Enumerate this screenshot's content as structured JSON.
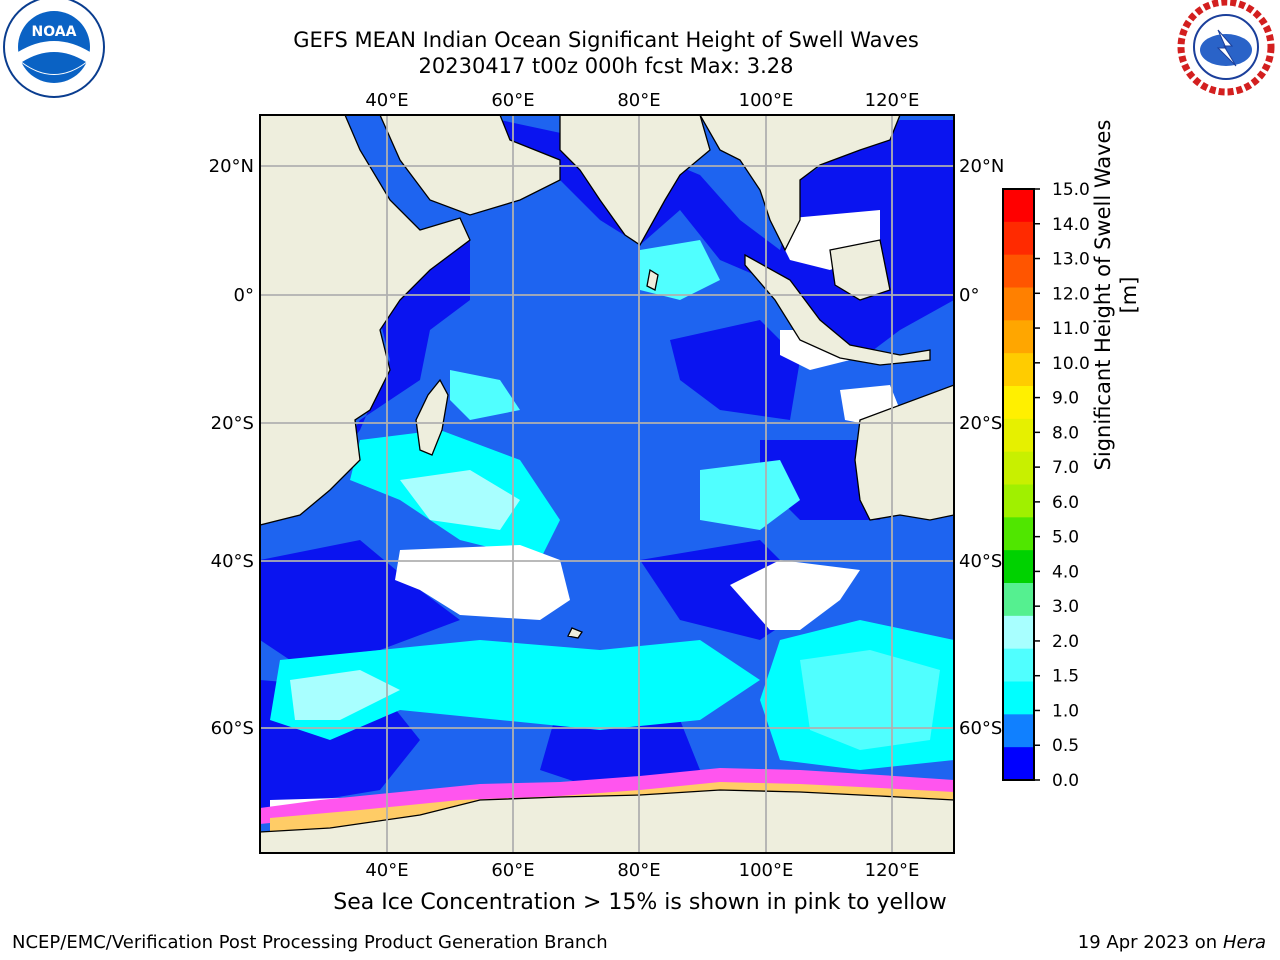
{
  "title": {
    "line1": "GEFS MEAN Indian Ocean Significant Height of Swell Waves",
    "line2": "20230417 t00z 000h fcst   Max: 3.28"
  },
  "logos": {
    "left": {
      "icon": "noaa-logo",
      "text": "NOAA",
      "ring_text": "NATIONAL OCEANIC AND ATMOSPHERIC ADMINISTRATION · U.S. DEPARTMENT OF COMMERCE"
    },
    "right": {
      "icon": "nws-logo",
      "ring_text": "NATIONAL WEATHER SERVICE"
    }
  },
  "map": {
    "lon_labels": [
      "40°E",
      "60°E",
      "80°E",
      "100°E",
      "120°E"
    ],
    "lat_labels_left": [
      "20°N",
      "0°",
      "20°S",
      "40°S",
      "60°S"
    ],
    "lat_labels_right": [
      "20°N",
      "0°",
      "20°S",
      "40°S",
      "60°S"
    ],
    "grid": true,
    "colors": {
      "land": "#eeeedd",
      "ocean_deep": "#1e64f0"
    }
  },
  "colorbar": {
    "label": "Significant Height of Swell Waves [m]",
    "ticks": [
      "15.0",
      "14.0",
      "13.0",
      "12.0",
      "11.0",
      "10.0",
      "9.0",
      "8.0",
      "7.0",
      "6.0",
      "5.0",
      "4.0",
      "3.0",
      "2.0",
      "1.5",
      "1.0",
      "0.5",
      "0.0"
    ],
    "colors": [
      "#ff0000",
      "#ff2a00",
      "#ff5500",
      "#ff8000",
      "#ffa600",
      "#ffcc00",
      "#fff000",
      "#e6f000",
      "#c8f000",
      "#a0f000",
      "#50e600",
      "#00d200",
      "#55f090",
      "#a8ffff",
      "#50ffff",
      "#00ffff",
      "#1080ff",
      "#0000ff"
    ]
  },
  "caption": "Sea Ice Concentration > 15% is shown in pink to yellow",
  "footer": {
    "left": "NCEP/EMC/Verification Post Processing Product Generation Branch",
    "right_prefix": "19 Apr 2023 on",
    "right_italic": "Hera"
  }
}
